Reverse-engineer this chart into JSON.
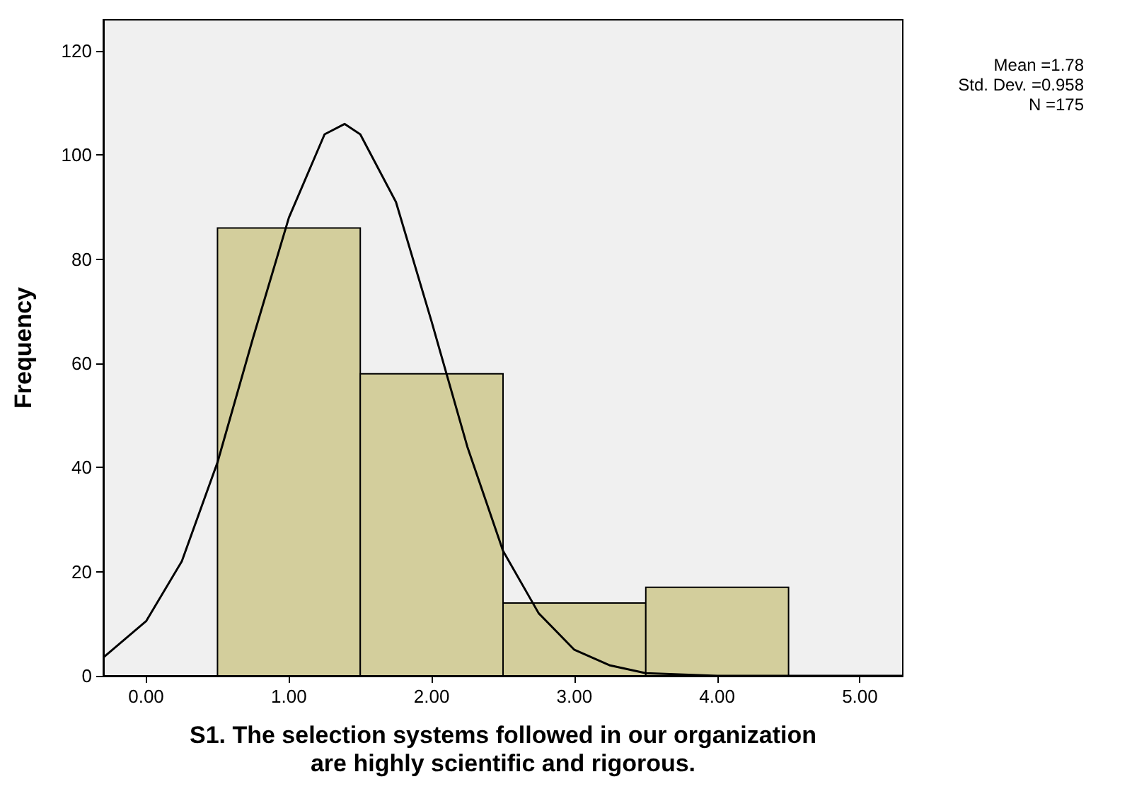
{
  "chart_data": {
    "type": "histogram",
    "xlabel": "S1. The selection systems followed in our organization\nare highly scientific and rigorous.",
    "ylabel": "Frequency",
    "bins": [
      0.5,
      1.5,
      2.5,
      3.5,
      4.5
    ],
    "values": [
      86,
      58,
      14,
      17
    ],
    "color": "#d3ce9c",
    "series": [
      {
        "type": "line",
        "color": "#000000",
        "x": [
          -0.3,
          0,
          0.25,
          0.5,
          0.75,
          1,
          1.25,
          1.39,
          1.5,
          1.75,
          2,
          2.25,
          2.5,
          2.75,
          3,
          3.25,
          3.5,
          4,
          5.3
        ],
        "values": [
          3.5,
          10.5,
          22,
          41,
          65,
          88,
          104,
          106,
          104,
          91,
          68,
          44,
          24,
          12,
          5,
          2,
          0.5,
          0,
          0
        ]
      }
    ],
    "xlim": [
      -0.3,
      5.3
    ],
    "ylim": [
      0,
      126
    ],
    "xticks": [
      {
        "value": 0,
        "label": "0.00"
      },
      {
        "value": 1,
        "label": "1.00"
      },
      {
        "value": 2,
        "label": "2.00"
      },
      {
        "value": 3,
        "label": "3.00"
      },
      {
        "value": 4,
        "label": "4.00"
      },
      {
        "value": 5,
        "label": "5.00"
      }
    ],
    "yticks": [
      0,
      20,
      40,
      60,
      80,
      100,
      120
    ],
    "annotations": [
      "Mean =1.78",
      "Std. Dev. =0.958",
      "N =175"
    ],
    "grid": false,
    "marker": "none",
    "line_style": "solid"
  }
}
